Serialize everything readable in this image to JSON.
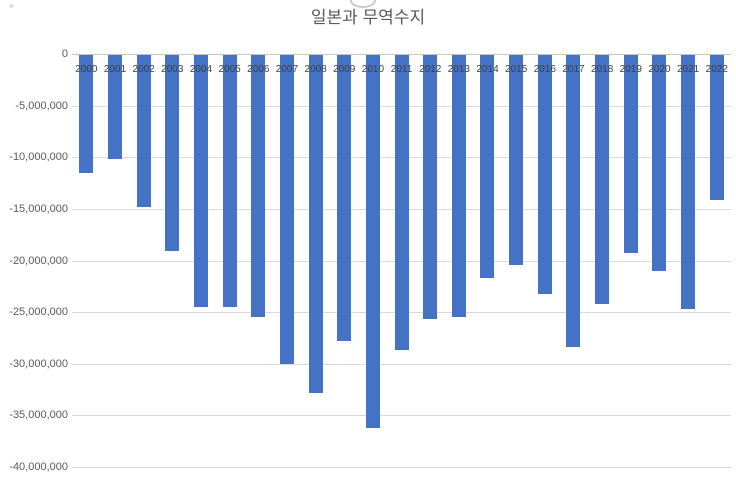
{
  "chart_data": {
    "type": "bar",
    "title": "일본과 무역수지",
    "categories": [
      "2000",
      "2001",
      "2002",
      "2003",
      "2004",
      "2005",
      "2006",
      "2007",
      "2008",
      "2009",
      "2010",
      "2011",
      "2012",
      "2013",
      "2014",
      "2015",
      "2016",
      "2017",
      "2018",
      "2019",
      "2020",
      "2021",
      "2022"
    ],
    "values": [
      -11400000,
      -10100000,
      -14700000,
      -19000000,
      -24400000,
      -24400000,
      -25400000,
      -29900000,
      -32700000,
      -27700000,
      -36100000,
      -28600000,
      -25600000,
      -25400000,
      -21600000,
      -20300000,
      -23100000,
      -28300000,
      -24100000,
      -19200000,
      -20900000,
      -24600000,
      -14000000
    ],
    "xlabel": "",
    "ylabel": "",
    "ylim": [
      -40000000,
      0
    ],
    "ytick_values": [
      0,
      -5000000,
      -10000000,
      -15000000,
      -20000000,
      -25000000,
      -30000000,
      -35000000,
      -40000000
    ],
    "ytick_labels": [
      "0",
      "-5,000,000",
      "-10,000,000",
      "-15,000,000",
      "-20,000,000",
      "-25,000,000",
      "-30,000,000",
      "-35,000,000",
      "-40,000,000"
    ],
    "grid": true,
    "legend": "none",
    "bar_color": "#4472C4",
    "gridline_color": "#D9D9D9",
    "title_color": "#595959",
    "axis_tick_label_color": "#595959",
    "category_label_color": "#404040"
  }
}
